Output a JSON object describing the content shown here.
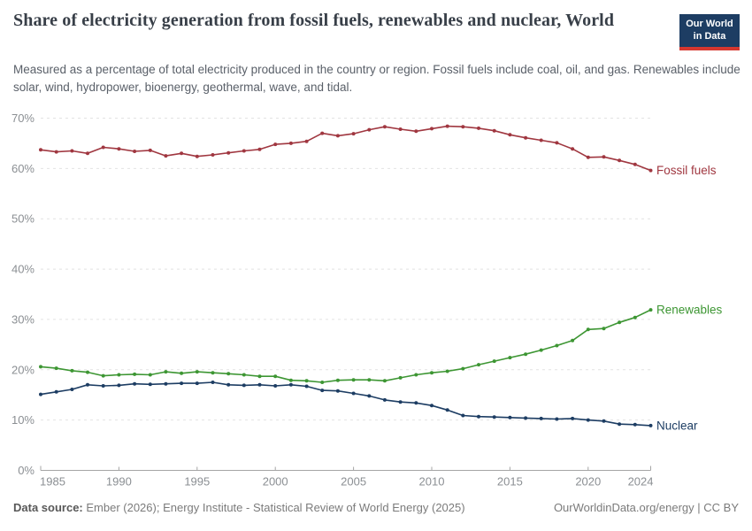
{
  "header": {
    "title": "Share of electricity generation from fossil fuels, renewables and nuclear, World",
    "subtitle": "Measured as a percentage of total electricity produced in the country or region. Fossil fuels include coal, oil, and gas. Renewables include solar, wind, hydropower, bioenergy, geothermal, wave, and tidal.",
    "logo": {
      "line1": "Our World",
      "line2": "in Data",
      "bg_color": "#1d3d63",
      "accent_color": "#d6372f"
    }
  },
  "chart_data": {
    "type": "line",
    "x": [
      1985,
      1986,
      1987,
      1988,
      1989,
      1990,
      1991,
      1992,
      1993,
      1994,
      1995,
      1996,
      1997,
      1998,
      1999,
      2000,
      2001,
      2002,
      2003,
      2004,
      2005,
      2006,
      2007,
      2008,
      2009,
      2010,
      2011,
      2012,
      2013,
      2014,
      2015,
      2016,
      2017,
      2018,
      2019,
      2020,
      2021,
      2022,
      2023,
      2024
    ],
    "series": [
      {
        "name": "Fossil fuels",
        "color": "#a03740",
        "values": [
          63.7,
          63.3,
          63.5,
          63.0,
          64.2,
          63.9,
          63.4,
          63.6,
          62.5,
          63.0,
          62.4,
          62.7,
          63.1,
          63.5,
          63.8,
          64.8,
          65.0,
          65.4,
          67.0,
          66.5,
          66.9,
          67.7,
          68.3,
          67.8,
          67.4,
          67.9,
          68.4,
          68.3,
          68.0,
          67.5,
          66.7,
          66.1,
          65.6,
          65.1,
          63.9,
          62.2,
          62.3,
          61.6,
          60.8,
          59.6
        ]
      },
      {
        "name": "Renewables",
        "color": "#3d9633",
        "values": [
          20.6,
          20.3,
          19.8,
          19.5,
          18.8,
          19.0,
          19.1,
          19.0,
          19.6,
          19.3,
          19.6,
          19.4,
          19.2,
          19.0,
          18.7,
          18.7,
          17.9,
          17.8,
          17.5,
          17.9,
          18.0,
          18.0,
          17.8,
          18.4,
          19.0,
          19.4,
          19.7,
          20.2,
          21.0,
          21.7,
          22.4,
          23.1,
          23.9,
          24.8,
          25.8,
          28.0,
          28.2,
          29.4,
          30.4,
          31.9
        ]
      },
      {
        "name": "Nuclear",
        "color": "#1d3d63",
        "values": [
          15.1,
          15.6,
          16.1,
          17.0,
          16.8,
          16.9,
          17.2,
          17.1,
          17.2,
          17.3,
          17.3,
          17.5,
          17.0,
          16.9,
          17.0,
          16.8,
          17.0,
          16.7,
          15.9,
          15.8,
          15.3,
          14.8,
          14.0,
          13.6,
          13.4,
          12.9,
          12.0,
          10.9,
          10.7,
          10.6,
          10.5,
          10.4,
          10.3,
          10.2,
          10.3,
          10.0,
          9.8,
          9.2,
          9.1,
          8.9
        ]
      }
    ],
    "title": "Share of electricity generation from fossil fuels, renewables and nuclear, World",
    "xlabel": "",
    "ylabel": "",
    "x_ticks": [
      1985,
      1990,
      1995,
      2000,
      2005,
      2010,
      2015,
      2020,
      2024
    ],
    "y_ticks": [
      0,
      10,
      20,
      30,
      40,
      50,
      60,
      70
    ],
    "y_tick_suffix": "%",
    "xlim": [
      1985,
      2024
    ],
    "ylim": [
      0,
      70
    ],
    "grid": "horizontal-dashed",
    "legend_position": "end-of-line-labels"
  },
  "footer": {
    "datasource_label": "Data source:",
    "datasource_text": " Ember (2026); Energy Institute - Statistical Review of World Energy (2025)",
    "link_text": "OurWorldinData.org/energy | CC BY"
  }
}
